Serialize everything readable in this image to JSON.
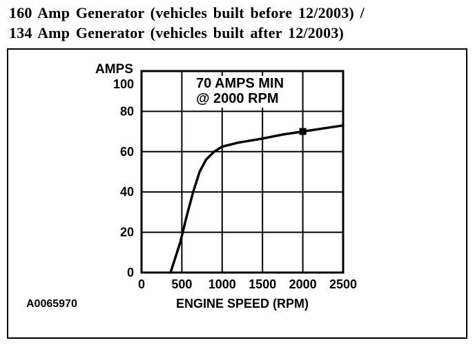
{
  "title": {
    "line1": "160 Amp Generator (vehicles built before 12/2003) /",
    "line2": "134 Amp Generator (vehicles built after 12/2003)"
  },
  "figure_code": "A0065970",
  "colors": {
    "foreground": "#000000",
    "background": "#ffffff"
  },
  "chart_data": {
    "type": "line",
    "title": "",
    "xlabel": "ENGINE SPEED (RPM)",
    "ylabel": "AMPS",
    "xlim": [
      0,
      2500
    ],
    "ylim": [
      0,
      100
    ],
    "x_ticks": [
      0,
      500,
      1000,
      1500,
      2000,
      2500
    ],
    "y_ticks": [
      0,
      20,
      40,
      60,
      80,
      100
    ],
    "grid": true,
    "legend": false,
    "annotation": "70 AMPS MIN\n@ 2000 RPM",
    "reference_point": {
      "x": 2000,
      "y": 70,
      "marker": "square"
    },
    "series": [
      {
        "name": "generator output curve",
        "points": [
          [
            360,
            0
          ],
          [
            480,
            15
          ],
          [
            560,
            28
          ],
          [
            640,
            40
          ],
          [
            720,
            50
          ],
          [
            800,
            56
          ],
          [
            900,
            60
          ],
          [
            1000,
            62.5
          ],
          [
            1200,
            64.5
          ],
          [
            1500,
            66.5
          ],
          [
            1750,
            68.5
          ],
          [
            2000,
            70
          ],
          [
            2250,
            71.5
          ],
          [
            2500,
            73
          ]
        ]
      }
    ]
  }
}
